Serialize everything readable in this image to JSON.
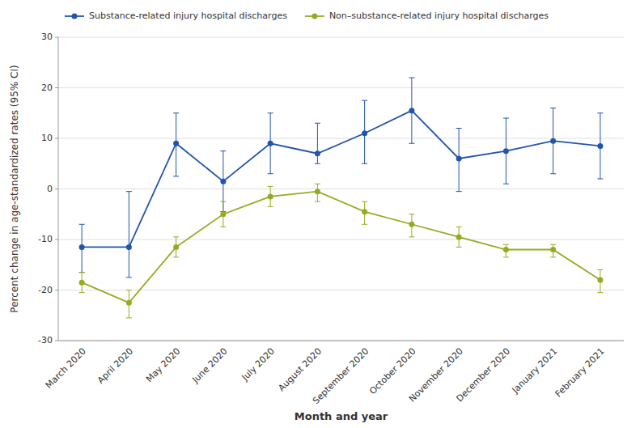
{
  "chart_data": {
    "type": "line",
    "xlabel": "Month and year",
    "ylabel": "Percent change in age-standardized rates (95% CI)",
    "categories": [
      "March 2020",
      "April 2020",
      "May 2020",
      "June 2020",
      "July 2020",
      "August 2020",
      "September 2020",
      "October 2020",
      "November 2020",
      "December 2020",
      "January 2021",
      "February 2021"
    ],
    "series": [
      {
        "name": "Substance-related injury hospital discharges",
        "color": "#2255aa",
        "marker": "circle",
        "line_style": "solid",
        "values": [
          -11.5,
          -11.5,
          9.0,
          1.5,
          9.0,
          7.0,
          11.0,
          15.5,
          6.0,
          7.5,
          9.5,
          8.5
        ],
        "ci_low": [
          -16.5,
          -17.5,
          2.5,
          -4.5,
          3.0,
          5.0,
          5.0,
          9.0,
          -0.5,
          1.0,
          3.0,
          2.0
        ],
        "ci_high": [
          -7.0,
          -0.5,
          15.0,
          7.5,
          15.0,
          13.0,
          17.5,
          22.0,
          12.0,
          14.0,
          16.0,
          15.0
        ]
      },
      {
        "name": "Non–substance-related injury hospital discharges",
        "color": "#99aa22",
        "marker": "circle",
        "line_style": "solid",
        "values": [
          -18.5,
          -22.5,
          -11.5,
          -5.0,
          -1.5,
          -0.5,
          -4.5,
          -7.0,
          -9.5,
          -12.0,
          -12.0,
          -18.0
        ],
        "ci_low": [
          -20.5,
          -25.5,
          -13.5,
          -7.5,
          -3.5,
          -2.5,
          -7.0,
          -9.5,
          -11.5,
          -13.5,
          -13.5,
          -20.5
        ],
        "ci_high": [
          -16.5,
          -20.0,
          -9.5,
          -2.5,
          0.5,
          1.0,
          -2.5,
          -5.0,
          -7.5,
          -11.0,
          -11.0,
          -16.0
        ]
      }
    ],
    "ylim": [
      -30,
      30
    ],
    "yticks": [
      -30,
      -20,
      -10,
      0,
      10,
      20,
      30
    ],
    "grid": true,
    "legend": "top-left"
  }
}
